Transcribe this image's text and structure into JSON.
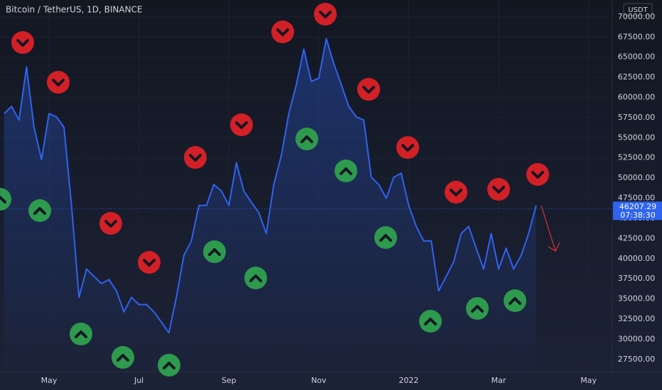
{
  "chart_data": {
    "type": "line",
    "title": "Bitcoin / TetherUS, 1D, BINANCE",
    "currency": "USDT",
    "categories": [
      null,
      null,
      null,
      null,
      null,
      null,
      "May",
      null,
      null,
      null,
      null,
      null,
      null,
      null,
      null,
      null,
      null,
      null,
      "Jul",
      null,
      null,
      null,
      null,
      null,
      null,
      null,
      null,
      null,
      null,
      null,
      "Sep",
      null,
      null,
      null,
      null,
      null,
      null,
      null,
      null,
      null,
      null,
      null,
      "Nov",
      null,
      null,
      null,
      null,
      null,
      null,
      null,
      null,
      null,
      null,
      null,
      "2022",
      null,
      null,
      null,
      null,
      null,
      null,
      null,
      null,
      null,
      null,
      null,
      "Mar",
      null,
      null,
      null,
      null,
      null,
      null,
      null,
      null,
      null,
      null,
      null,
      "May",
      null,
      null,
      null
    ],
    "values": [
      58000,
      58900,
      57200,
      63800,
      56300,
      52300,
      58000,
      57600,
      56300,
      46600,
      35200,
      38700,
      37800,
      36900,
      37400,
      36000,
      33400,
      35200,
      34300,
      34300,
      33400,
      32100,
      30800,
      35200,
      40400,
      42200,
      46600,
      46600,
      49200,
      48400,
      46600,
      51900,
      48400,
      47000,
      45700,
      43100,
      49200,
      52800,
      58000,
      61600,
      66000,
      62000,
      62400,
      67300,
      64200,
      61600,
      58900,
      57600,
      57200,
      50100,
      49200,
      47500,
      50100,
      50600,
      46600,
      44000,
      42200,
      42200,
      36000,
      37800,
      39600,
      43100,
      44000,
      41300,
      38700,
      43100,
      38700,
      41300,
      38700,
      40400,
      43100,
      46600,
      null,
      null,
      null,
      null,
      null,
      null,
      null,
      null,
      null,
      null
    ],
    "color": "#2f63f0",
    "last_price": 46207.29,
    "countdown": "07:38:30",
    "ylim": [
      25900,
      72100
    ],
    "yticks": [
      {
        "value": 27500,
        "label": "27500.00"
      },
      {
        "value": 30000,
        "label": "30000.00"
      },
      {
        "value": 32500,
        "label": "32500.00"
      },
      {
        "value": 35000,
        "label": "35000.00"
      },
      {
        "value": 37500,
        "label": "37500.00"
      },
      {
        "value": 40000,
        "label": "40000.00"
      },
      {
        "value": 42500,
        "label": "42500.00"
      },
      {
        "value": 45000,
        "label": "45000.00"
      },
      {
        "value": 47500,
        "label": "47500.00"
      },
      {
        "value": 50000,
        "label": "50000.00"
      },
      {
        "value": 52500,
        "label": "52500.00"
      },
      {
        "value": 55000,
        "label": "55000.00"
      },
      {
        "value": 57500,
        "label": "57500.00"
      },
      {
        "value": 60000,
        "label": "60000.00"
      },
      {
        "value": 62500,
        "label": "62500.00"
      },
      {
        "value": 65000,
        "label": "65000.00"
      },
      {
        "value": 67500,
        "label": "67500.00"
      },
      {
        "value": 70000,
        "label": "70000.00"
      }
    ],
    "grid": true
  }
}
